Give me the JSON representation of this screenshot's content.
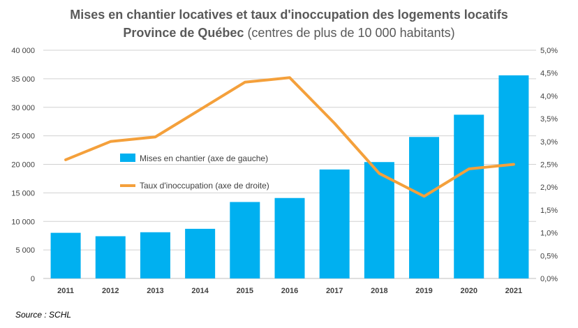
{
  "title": {
    "line1": "Mises en chantier locatives et taux d'inoccupation des logements locatifs",
    "line2_bold": "Province de Québec",
    "line2_rest": " (centres de plus de 10 000 habitants)"
  },
  "source": "Source : SCHL",
  "colors": {
    "bars": "#00b0f0",
    "line": "#f4a03b",
    "grid": "#d0d0d0",
    "text": "#404040"
  },
  "chart_data": {
    "type": "bar",
    "categories": [
      "2011",
      "2012",
      "2013",
      "2014",
      "2015",
      "2016",
      "2017",
      "2018",
      "2019",
      "2020",
      "2021"
    ],
    "series": [
      {
        "name": "Mises en chantier (axe de gauche)",
        "type": "bar",
        "axis": "left",
        "values": [
          8000,
          7400,
          8100,
          8700,
          13400,
          14100,
          19100,
          20400,
          24800,
          28700,
          35600
        ]
      },
      {
        "name": "Taux d'inoccupation (axe de droite)",
        "type": "line",
        "axis": "right",
        "values": [
          2.6,
          3.0,
          3.1,
          3.7,
          4.3,
          4.4,
          3.4,
          2.3,
          1.8,
          2.4,
          2.5
        ]
      }
    ],
    "yleft": {
      "ylim": [
        0,
        40000
      ],
      "ticks": [
        0,
        5000,
        10000,
        15000,
        20000,
        25000,
        30000,
        35000,
        40000
      ],
      "tick_labels": [
        "0",
        "5 000",
        "10 000",
        "15 000",
        "20 000",
        "25 000",
        "30 000",
        "35 000",
        "40 000"
      ]
    },
    "yright": {
      "ylim": [
        0,
        5.0
      ],
      "ticks": [
        0,
        0.5,
        1.0,
        1.5,
        2.0,
        2.5,
        3.0,
        3.5,
        4.0,
        4.5,
        5.0
      ],
      "tick_labels": [
        "0,0%",
        "0,5%",
        "1,0%",
        "1,5%",
        "2,0%",
        "2,5%",
        "3,0%",
        "3,5%",
        "4,0%",
        "4,5%",
        "5,0%"
      ]
    },
    "grid": true,
    "legend": "inside-left"
  }
}
